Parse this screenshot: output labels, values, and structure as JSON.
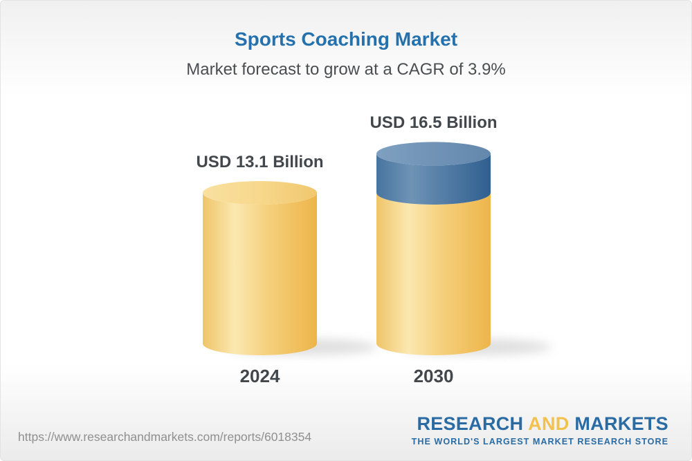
{
  "chart_data": {
    "type": "bar",
    "variant": "3d-cylinder",
    "title": "Sports Coaching Market",
    "subtitle": "Market forecast to grow at a CAGR of 3.9%",
    "cagr_percent": 3.9,
    "unit": "USD Billion",
    "categories": [
      "2024",
      "2030"
    ],
    "values": [
      13.1,
      16.5
    ],
    "value_labels": [
      "USD 13.1 Billion",
      "USD 16.5 Billion"
    ],
    "legend": "none",
    "grid": "off",
    "colors": {
      "base_cylinder_yellow": "#F2C96F",
      "growth_segment_blue": "#4A77A3",
      "title_blue": "#2471AD",
      "label_text": "#42474C",
      "subtitle_text": "#4B4D50"
    }
  },
  "footer": {
    "url": "https://www.researchandmarkets.com/reports/6018354",
    "logo": {
      "research": "RESEARCH",
      "and": "AND",
      "markets": "MARKETS",
      "tagline": "THE WORLD'S LARGEST MARKET RESEARCH STORE",
      "brand_blue": "#2A6BA3",
      "brand_yellow": "#F2C14E"
    }
  }
}
